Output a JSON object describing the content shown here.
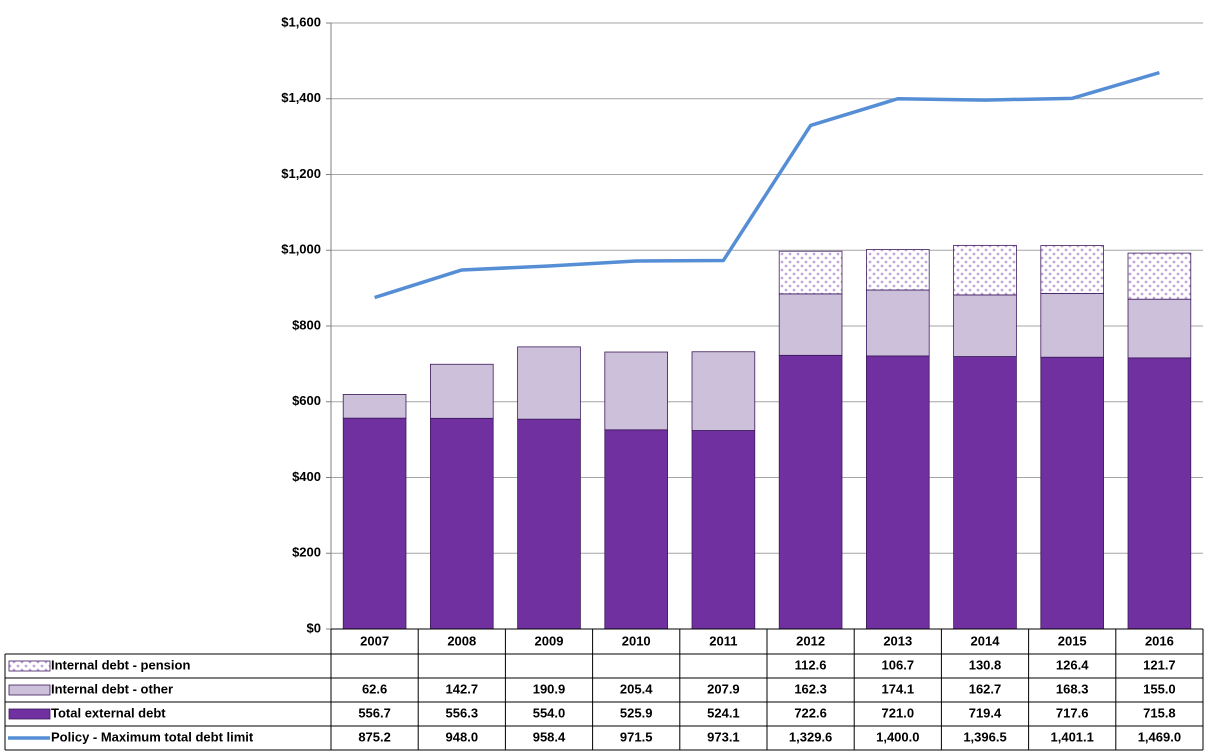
{
  "chart_data": {
    "type": "bar",
    "stacked": true,
    "categories": [
      "2007",
      "2008",
      "2009",
      "2010",
      "2011",
      "2012",
      "2013",
      "2014",
      "2015",
      "2016"
    ],
    "series": [
      {
        "name": "Internal debt - pension",
        "type": "bar",
        "color": "#b48fd6",
        "pattern": "dots",
        "values": [
          null,
          null,
          null,
          null,
          null,
          112.6,
          106.7,
          130.8,
          126.4,
          121.7
        ],
        "value_labels": [
          null,
          null,
          null,
          null,
          null,
          "112.6",
          "106.7",
          "130.8",
          "126.4",
          "121.7"
        ]
      },
      {
        "name": "Internal debt - other",
        "type": "bar",
        "color": "#ccc0da",
        "values": [
          62.6,
          142.7,
          190.9,
          205.4,
          207.9,
          162.3,
          174.1,
          162.7,
          168.3,
          155.0
        ],
        "value_labels": [
          "62.6",
          "142.7",
          "190.9",
          "205.4",
          "207.9",
          "162.3",
          "174.1",
          "162.7",
          "168.3",
          "155.0"
        ]
      },
      {
        "name": "Total external debt",
        "type": "bar",
        "color": "#7030a0",
        "values": [
          556.7,
          556.3,
          554.0,
          525.9,
          524.1,
          722.6,
          721.0,
          719.4,
          717.6,
          715.8
        ],
        "value_labels": [
          "556.7",
          "556.3",
          "554.0",
          "525.9",
          "524.1",
          "722.6",
          "721.0",
          "719.4",
          "717.6",
          "715.8"
        ]
      },
      {
        "name": "Policy - Maximum total debt limit",
        "type": "line",
        "color": "#558ed5",
        "values": [
          875.2,
          948.0,
          958.4,
          971.5,
          973.1,
          1329.6,
          1400.0,
          1396.5,
          1401.1,
          1469.0
        ],
        "value_labels": [
          "875.2",
          "948.0",
          "958.4",
          "971.5",
          "973.1",
          "1,329.6",
          "1,400.0",
          "1,396.5",
          "1,401.1",
          "1,469.0"
        ]
      }
    ],
    "ylim": [
      0,
      1600
    ],
    "yticks": [
      {
        "value": 0,
        "label": "$0"
      },
      {
        "value": 200,
        "label": "$200"
      },
      {
        "value": 400,
        "label": "$400"
      },
      {
        "value": 600,
        "label": "$600"
      },
      {
        "value": 800,
        "label": "$800"
      },
      {
        "value": 1000,
        "label": "$1,000"
      },
      {
        "value": 1200,
        "label": "$1,200"
      },
      {
        "value": 1400,
        "label": "$1,400"
      },
      {
        "value": 1600,
        "label": "$1,600"
      }
    ],
    "grid": true,
    "legend": "data-table"
  }
}
